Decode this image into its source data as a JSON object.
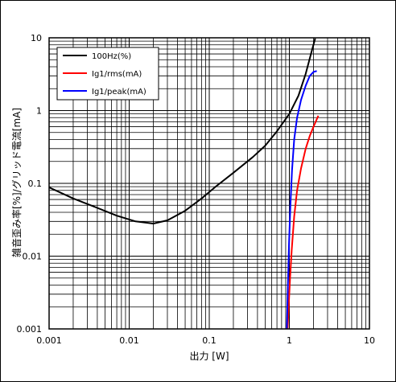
{
  "chart_data": {
    "type": "line",
    "xlabel": "出力 [W]",
    "ylabel": "雑音歪み率[%]/グリッド電流[mA]",
    "xscale": "log",
    "yscale": "log",
    "xlim": [
      0.001,
      10
    ],
    "ylim": [
      0.001,
      10
    ],
    "grid": true,
    "legend_position": "top-left",
    "x_ticks": [
      "0.001",
      "0.01",
      "0.1",
      "1",
      "10"
    ],
    "y_ticks": [
      "0.001",
      "0.01",
      "0.1",
      "1",
      "10"
    ],
    "series": [
      {
        "name": "100Hz(%)",
        "color": "#000000",
        "x": [
          0.001,
          0.002,
          0.004,
          0.007,
          0.012,
          0.02,
          0.03,
          0.05,
          0.08,
          0.12,
          0.2,
          0.35,
          0.5,
          0.7,
          1.0,
          1.3,
          1.6,
          1.9,
          2.1
        ],
        "y": [
          0.088,
          0.062,
          0.046,
          0.036,
          0.03,
          0.028,
          0.031,
          0.042,
          0.062,
          0.09,
          0.14,
          0.23,
          0.33,
          0.52,
          0.9,
          1.6,
          3.2,
          6.5,
          9.8
        ]
      },
      {
        "name": "Ig1/rms(mA)",
        "color": "#ff0000",
        "x": [
          0.95,
          0.98,
          1.02,
          1.07,
          1.15,
          1.25,
          1.4,
          1.6,
          1.8,
          2.0,
          2.3
        ],
        "y": [
          0.001,
          0.002,
          0.005,
          0.012,
          0.035,
          0.08,
          0.16,
          0.3,
          0.45,
          0.6,
          0.85
        ]
      },
      {
        "name": "Ig1/peak(mA)",
        "color": "#0000ff",
        "x": [
          0.93,
          0.96,
          0.99,
          1.03,
          1.08,
          1.15,
          1.25,
          1.4,
          1.6,
          1.8,
          2.0,
          2.2
        ],
        "y": [
          0.001,
          0.004,
          0.015,
          0.05,
          0.15,
          0.4,
          0.8,
          1.4,
          2.2,
          3.0,
          3.4,
          3.5
        ]
      }
    ]
  }
}
